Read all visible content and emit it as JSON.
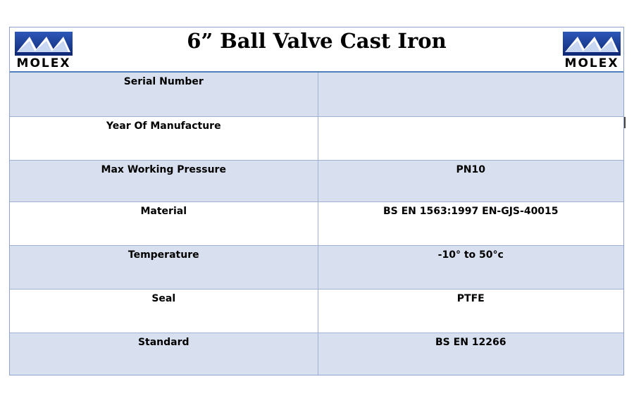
{
  "document": {
    "title": "6” Ball Valve Cast Iron",
    "brand": {
      "logo_text": "MOLEX",
      "logo_icon": "molex-logo-icon",
      "colors": {
        "logo_blue": "#1f3f92",
        "header_rule": "#4f81bd",
        "row_shade": "#d8e0f0"
      }
    },
    "rows": [
      {
        "label": "Serial Number",
        "value": ""
      },
      {
        "label": "Year Of Manufacture",
        "value": ""
      },
      {
        "label": "Max Working Pressure",
        "value": "PN10"
      },
      {
        "label": "Material",
        "value": "BS EN 1563:1997 EN-GJS-40015"
      },
      {
        "label": "Temperature",
        "value": "-10° to 50°c"
      },
      {
        "label": "Seal",
        "value": "PTFE"
      },
      {
        "label": "Standard",
        "value": "BS EN 12266"
      }
    ]
  }
}
